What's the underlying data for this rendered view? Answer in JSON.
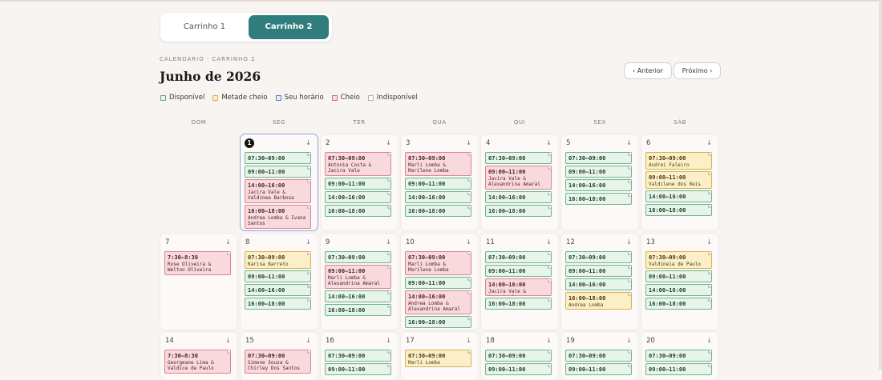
{
  "tabs": [
    {
      "label": "Carrinho 1",
      "active": false
    },
    {
      "label": "Carrinho 2",
      "active": true
    }
  ],
  "subtitle": "CALENDÁRIO · CARRINHO 2",
  "title": "Junho de 2026",
  "nav": {
    "prev": "‹ Anterior",
    "next": "Próximo ›"
  },
  "legend": [
    {
      "label": "Disponível",
      "color": "#5aa878"
    },
    {
      "label": "Metade cheio",
      "color": "#d6b04a"
    },
    {
      "label": "Seu horário",
      "color": "#5a76c0"
    },
    {
      "label": "Cheio",
      "color": "#d06a78"
    },
    {
      "label": "Indisponível",
      "color": "#b0aca8"
    }
  ],
  "weekdays": [
    "DOM",
    "SEG",
    "TER",
    "QUA",
    "QUI",
    "SEX",
    "SÁB"
  ],
  "download_icon": "↓",
  "weeks": [
    [
      null,
      {
        "day": "1",
        "today": true,
        "slots": [
          {
            "time": "07:30–09:00",
            "status": "green"
          },
          {
            "time": "09:00–11:00",
            "status": "green"
          },
          {
            "time": "14:00–16:00",
            "status": "red",
            "names": "Jacira Vale & Valdinea Barbosa"
          },
          {
            "time": "16:00–18:00",
            "status": "red",
            "names": "Andrea Lomba & Ivana Santos"
          }
        ]
      },
      {
        "day": "2",
        "slots": [
          {
            "time": "07:30–09:00",
            "status": "red",
            "names": "Antonia Costa & Jacira Vale"
          },
          {
            "time": "09:00–11:00",
            "status": "green"
          },
          {
            "time": "14:00–16:00",
            "status": "green"
          },
          {
            "time": "16:00–18:00",
            "status": "green"
          }
        ]
      },
      {
        "day": "3",
        "slots": [
          {
            "time": "07:30–09:00",
            "status": "red",
            "names": "Marli Lomba & Marilene Lomba"
          },
          {
            "time": "09:00–11:00",
            "status": "green"
          },
          {
            "time": "14:00–16:00",
            "status": "green"
          },
          {
            "time": "16:00–18:00",
            "status": "green"
          }
        ]
      },
      {
        "day": "4",
        "slots": [
          {
            "time": "07:30–09:00",
            "status": "green"
          },
          {
            "time": "09:00–11:00",
            "status": "red",
            "names": "Jacira Vale & Alexandrina Amaral"
          },
          {
            "time": "14:00–16:00",
            "status": "green"
          },
          {
            "time": "16:00–18:00",
            "status": "green"
          }
        ]
      },
      {
        "day": "5",
        "slots": [
          {
            "time": "07:30–09:00",
            "status": "green"
          },
          {
            "time": "09:00–11:00",
            "status": "green"
          },
          {
            "time": "14:00–16:00",
            "status": "green"
          },
          {
            "time": "16:00–18:00",
            "status": "green"
          }
        ]
      },
      {
        "day": "6",
        "slots": [
          {
            "time": "07:30–09:00",
            "status": "yellow",
            "names": "Andrei Faleiro"
          },
          {
            "time": "09:00–11:00",
            "status": "yellow",
            "names": "Valdilene dos Reis"
          },
          {
            "time": "14:00–16:00",
            "status": "green"
          },
          {
            "time": "16:00–18:00",
            "status": "green"
          }
        ]
      }
    ],
    [
      {
        "day": "7",
        "slots": [
          {
            "time": "7:30–8:30",
            "status": "red",
            "names": "Rose Oliveira & Welton Oliveira"
          }
        ]
      },
      {
        "day": "8",
        "slots": [
          {
            "time": "07:30–09:00",
            "status": "yellow",
            "names": "Karina Barreto"
          },
          {
            "time": "09:00–11:00",
            "status": "green"
          },
          {
            "time": "14:00–16:00",
            "status": "green"
          },
          {
            "time": "16:00–18:00",
            "status": "green"
          }
        ]
      },
      {
        "day": "9",
        "slots": [
          {
            "time": "07:30–09:00",
            "status": "green"
          },
          {
            "time": "09:00–11:00",
            "status": "red",
            "names": "Marli Lomba & Alexandrina Amaral"
          },
          {
            "time": "14:00–16:00",
            "status": "green"
          },
          {
            "time": "16:00–18:00",
            "status": "green"
          }
        ]
      },
      {
        "day": "10",
        "slots": [
          {
            "time": "07:30–09:00",
            "status": "red",
            "names": "Marli Lomba & Marilene Lomba"
          },
          {
            "time": "09:00–11:00",
            "status": "green"
          },
          {
            "time": "14:00–16:00",
            "status": "red",
            "names": "Andrea Lomba & Alexandrina Amaral"
          },
          {
            "time": "16:00–18:00",
            "status": "green"
          }
        ]
      },
      {
        "day": "11",
        "slots": [
          {
            "time": "07:30–09:00",
            "status": "green"
          },
          {
            "time": "09:00–11:00",
            "status": "green"
          },
          {
            "time": "14:00–16:00",
            "status": "red",
            "names": "Jacira Vale & Anunciação"
          },
          {
            "time": "16:00–18:00",
            "status": "green"
          }
        ]
      },
      {
        "day": "12",
        "slots": [
          {
            "time": "07:30–09:00",
            "status": "green"
          },
          {
            "time": "09:00–11:00",
            "status": "green"
          },
          {
            "time": "14:00–16:00",
            "status": "green"
          },
          {
            "time": "16:00–18:00",
            "status": "yellow",
            "names": "Andrea Lomba"
          }
        ]
      },
      {
        "day": "13",
        "slots": [
          {
            "time": "07:30–09:00",
            "status": "yellow",
            "names": "Valdineia de Paulo"
          },
          {
            "time": "09:00–11:00",
            "status": "green"
          },
          {
            "time": "14:00–16:00",
            "status": "green"
          },
          {
            "time": "16:00–18:00",
            "status": "green"
          }
        ]
      }
    ],
    [
      {
        "day": "14",
        "slots": [
          {
            "time": "7:30–8:30",
            "status": "red",
            "names": "Georgeane Lima & Valdice de Paulo"
          }
        ]
      },
      {
        "day": "15",
        "slots": [
          {
            "time": "07:30–09:00",
            "status": "red",
            "names": "Simone Souza & Chirley Dos Santos"
          }
        ]
      },
      {
        "day": "16",
        "slots": [
          {
            "time": "07:30–09:00",
            "status": "green"
          },
          {
            "time": "09:00–11:00",
            "status": "green"
          }
        ]
      },
      {
        "day": "17",
        "slots": [
          {
            "time": "07:30–09:00",
            "status": "yellow",
            "names": "Marli Lomba"
          }
        ]
      },
      {
        "day": "18",
        "slots": [
          {
            "time": "07:30–09:00",
            "status": "green"
          },
          {
            "time": "09:00–11:00",
            "status": "green"
          }
        ]
      },
      {
        "day": "19",
        "slots": [
          {
            "time": "07:30–09:00",
            "status": "green"
          },
          {
            "time": "09:00–11:00",
            "status": "green"
          }
        ]
      },
      {
        "day": "20",
        "slots": [
          {
            "time": "07:30–09:00",
            "status": "green"
          },
          {
            "time": "09:00–11:00",
            "status": "green"
          }
        ]
      }
    ]
  ]
}
